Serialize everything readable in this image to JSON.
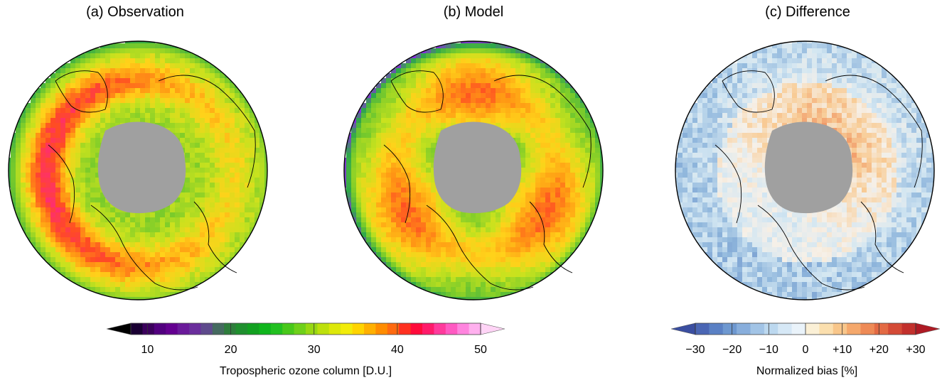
{
  "panels": [
    {
      "title": "(a) Observation",
      "field": "ozone_observation"
    },
    {
      "title": "(b) Model",
      "field": "ozone_model"
    },
    {
      "title": "(c) Difference",
      "field": "normalized_bias"
    }
  ],
  "colorbars": {
    "ozone": {
      "label": "Tropospheric ozone column [D.U.]",
      "ticks": [
        "10",
        "20",
        "30",
        "40",
        "50"
      ],
      "range": [
        8,
        50
      ],
      "extend": "both",
      "colors": [
        "#000000",
        "#1a0033",
        "#3b005c",
        "#52007f",
        "#640090",
        "#6a1a9a",
        "#6a2e9c",
        "#5e4a8c",
        "#456a60",
        "#2e7d3c",
        "#1f8f2e",
        "#12a020",
        "#0fb51c",
        "#22c020",
        "#48c81a",
        "#6fd01a",
        "#98d812",
        "#bde00c",
        "#dde80a",
        "#f2ec0a",
        "#ffd400",
        "#ffb000",
        "#ff8c00",
        "#ff6a10",
        "#ff3020",
        "#ff0a3a",
        "#ff1a6a",
        "#ff3a9c",
        "#ff5ac2",
        "#ff84de",
        "#ffb0ee",
        "#ffd4f6"
      ]
    },
    "bias": {
      "label": "Normalized bias [%]",
      "ticks": [
        "−30",
        "−20",
        "−10",
        "0",
        "+10",
        "+20",
        "+30"
      ],
      "range": [
        -30,
        30
      ],
      "extend": "both",
      "colors": [
        "#3a4ea0",
        "#4a66b4",
        "#5a80c4",
        "#6e98d0",
        "#88aedc",
        "#a2c4e6",
        "#bcd8ef",
        "#d6e8f6",
        "#eaf3fa",
        "#fbf0d6",
        "#fbdfae",
        "#f8c68a",
        "#f5a86c",
        "#ee8a56",
        "#e36a44",
        "#d44a36",
        "#c2302c",
        "#ae1a24"
      ]
    }
  },
  "ozone_palette": [
    "#8a2be2",
    "#2fa84a",
    "#7ccc2a",
    "#c8e21e",
    "#ffd21a",
    "#ff9a14",
    "#ff4a24",
    "#ff2a7a",
    "#ff7ad8"
  ],
  "bias_palette": [
    "#4a6cb8",
    "#8fb6dc",
    "#d2e6f2",
    "#f6f0e8",
    "#f8cc96",
    "#ee8656",
    "#cc3a2e",
    "#b01c24"
  ],
  "land_mask_color": "#a0a0a0",
  "boundary_color": "#000000"
}
